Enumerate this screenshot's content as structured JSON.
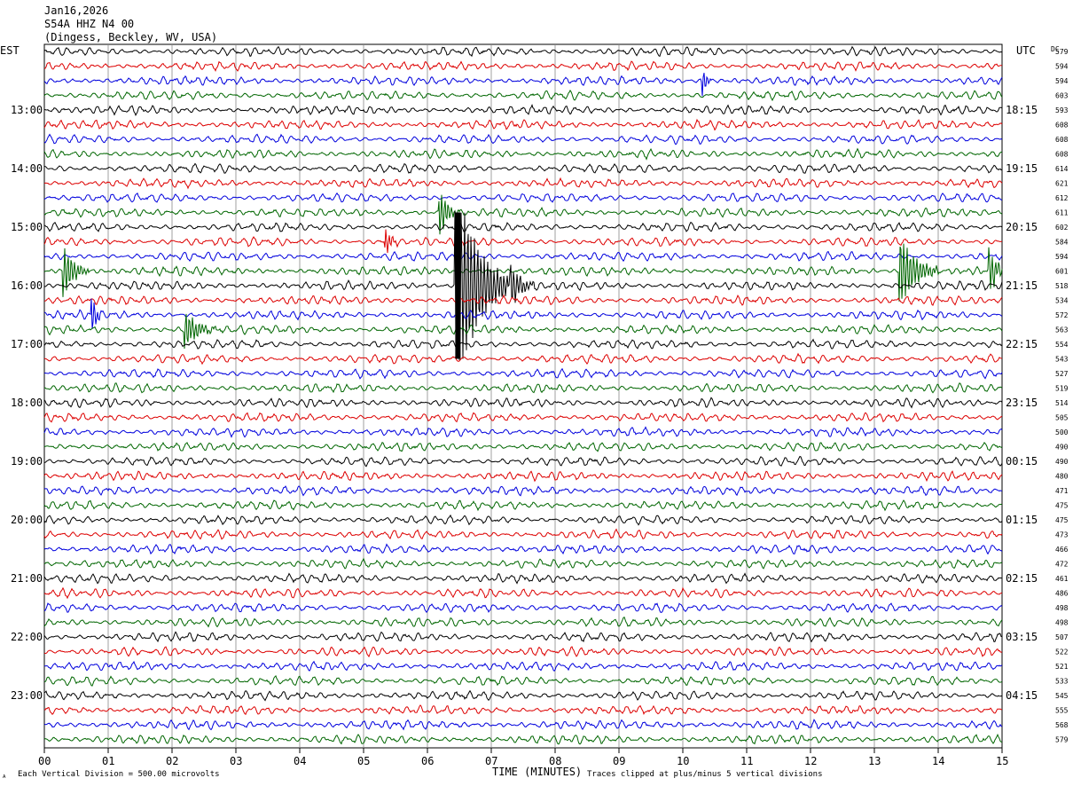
{
  "header": {
    "date": "Jan16,2026",
    "station": "S54A HHZ N4 00",
    "location": "(Dingess, Beckley, WV, USA)"
  },
  "timezones": {
    "left": "EST",
    "right": "UTC",
    "dc_header": "DC"
  },
  "footer": {
    "vertical_division": "Each Vertical Division =  500.00 microvolts",
    "clip_note": "Traces clipped at plus/minus 5 vertical divisions",
    "mark": "ᴬ"
  },
  "chart_data": {
    "type": "helicorder",
    "xlabel": "TIME (MINUTES)",
    "x_ticks": [
      "00",
      "01",
      "02",
      "03",
      "04",
      "05",
      "06",
      "07",
      "08",
      "09",
      "10",
      "11",
      "12",
      "13",
      "14",
      "15"
    ],
    "xlim": [
      0,
      15
    ],
    "trace_colors": [
      "#000000",
      "#dd0000",
      "#0000dd",
      "#006600"
    ],
    "left_hour_labels": [
      {
        "row": 4,
        "label": "13:00"
      },
      {
        "row": 8,
        "label": "14:00"
      },
      {
        "row": 12,
        "label": "15:00"
      },
      {
        "row": 16,
        "label": "16:00"
      },
      {
        "row": 20,
        "label": "17:00"
      },
      {
        "row": 24,
        "label": "18:00"
      },
      {
        "row": 28,
        "label": "19:00"
      },
      {
        "row": 32,
        "label": "20:00"
      },
      {
        "row": 36,
        "label": "21:00"
      },
      {
        "row": 40,
        "label": "22:00"
      },
      {
        "row": 44,
        "label": "23:00"
      }
    ],
    "right_hour_labels": [
      {
        "row": 4,
        "label": "18:15"
      },
      {
        "row": 8,
        "label": "19:15"
      },
      {
        "row": 12,
        "label": "20:15"
      },
      {
        "row": 16,
        "label": "21:15"
      },
      {
        "row": 20,
        "label": "22:15"
      },
      {
        "row": 24,
        "label": "23:15"
      },
      {
        "row": 28,
        "label": "00:15"
      },
      {
        "row": 32,
        "label": "01:15"
      },
      {
        "row": 36,
        "label": "02:15"
      },
      {
        "row": 40,
        "label": "03:15"
      },
      {
        "row": 44,
        "label": "04:15"
      }
    ],
    "dc_offsets": [
      "579",
      "594",
      "594",
      "603",
      "593",
      "608",
      "608",
      "608",
      "614",
      "621",
      "612",
      "611",
      "602",
      "584",
      "594",
      "601",
      "518",
      "534",
      "572",
      "563",
      "554",
      "543",
      "527",
      "519",
      "514",
      "505",
      "500",
      "490",
      "490",
      "480",
      "471",
      "475",
      "475",
      "473",
      "466",
      "472",
      "461",
      "486",
      "498",
      "498",
      "507",
      "522",
      "521",
      "533",
      "545",
      "555",
      "568",
      "579"
    ],
    "events": [
      {
        "row": 11,
        "minute": 6.2,
        "amplitude": 1.6,
        "duration_min": 0.3
      },
      {
        "row": 13,
        "minute": 5.35,
        "amplitude": 0.9,
        "duration_min": 0.2
      },
      {
        "row": 15,
        "minute": 0.3,
        "amplitude": 1.8,
        "duration_min": 0.4
      },
      {
        "row": 15,
        "minute": 13.4,
        "amplitude": 2.5,
        "duration_min": 0.6
      },
      {
        "row": 15,
        "minute": 14.8,
        "amplitude": 1.6,
        "duration_min": 0.3
      },
      {
        "row": 16,
        "minute": 6.45,
        "amplitude": 5.0,
        "duration_min": 0.8,
        "clipped": true
      },
      {
        "row": 16,
        "minute": 7.3,
        "amplitude": 1.6,
        "duration_min": 0.4
      },
      {
        "row": 18,
        "minute": 0.75,
        "amplitude": 1.4,
        "duration_min": 0.15
      },
      {
        "row": 19,
        "minute": 2.2,
        "amplitude": 1.3,
        "duration_min": 0.5
      },
      {
        "row": 2,
        "minute": 10.3,
        "amplitude": 1.2,
        "duration_min": 0.15
      }
    ]
  }
}
